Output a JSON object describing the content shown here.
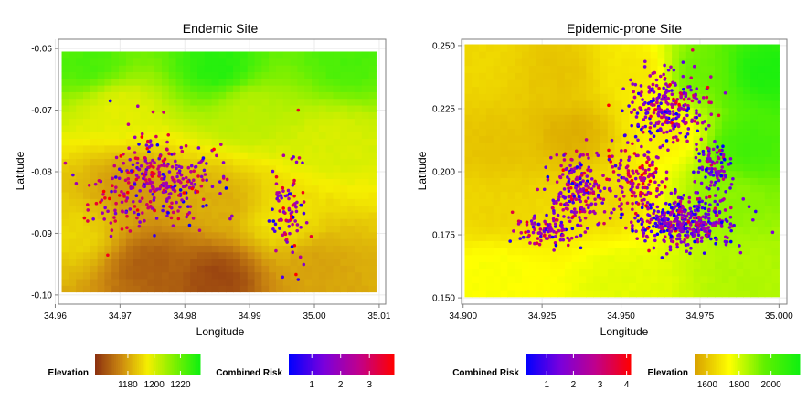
{
  "figure": {
    "panels": [
      "Endemic Site",
      "Epidemic-prone Site"
    ]
  },
  "chart_data": [
    {
      "type": "scatter",
      "title": "Endemic Site",
      "xlabel": "Longitude",
      "ylabel": "Latitude",
      "xlim": [
        34.9605,
        35.011
      ],
      "ylim": [
        -0.1015,
        -0.0585
      ],
      "xticks": [
        34.96,
        34.97,
        34.98,
        34.99,
        35.0,
        35.01
      ],
      "xtick_labels": [
        "34.96",
        "34.97",
        "34.98",
        "34.99",
        "35.00",
        "35.01"
      ],
      "yticks": [
        -0.06,
        -0.07,
        -0.08,
        -0.09,
        -0.1
      ],
      "ytick_labels": [
        "-0.06",
        "-0.07",
        "-0.08",
        "-0.09",
        "-0.10"
      ],
      "grid": true,
      "background": {
        "variable": "Elevation",
        "extent": {
          "x": [
            34.961,
            35.0095
          ],
          "y": [
            -0.0995,
            -0.0605
          ]
        },
        "range": [
          1155,
          1235
        ],
        "description_values": [
          {
            "x": 34.965,
            "y": -0.062,
            "elev": 1225
          },
          {
            "x": 34.985,
            "y": -0.063,
            "elev": 1232
          },
          {
            "x": 35.005,
            "y": -0.062,
            "elev": 1225
          },
          {
            "x": 34.97,
            "y": -0.07,
            "elev": 1198
          },
          {
            "x": 34.99,
            "y": -0.07,
            "elev": 1205
          },
          {
            "x": 35.003,
            "y": -0.075,
            "elev": 1200
          },
          {
            "x": 34.972,
            "y": -0.082,
            "elev": 1178
          },
          {
            "x": 34.985,
            "y": -0.085,
            "elev": 1182
          },
          {
            "x": 34.995,
            "y": -0.088,
            "elev": 1193
          },
          {
            "x": 34.975,
            "y": -0.095,
            "elev": 1165
          },
          {
            "x": 34.985,
            "y": -0.097,
            "elev": 1160
          },
          {
            "x": 35.0,
            "y": -0.095,
            "elev": 1180
          },
          {
            "x": 34.963,
            "y": -0.09,
            "elev": 1190
          }
        ]
      },
      "point_groups": [
        {
          "cx": 34.9765,
          "cy": -0.0812,
          "sx": 0.0043,
          "sy": 0.0037,
          "n": 300,
          "risk_mean": 2.1,
          "risk_sd": 0.9
        },
        {
          "cx": 34.969,
          "cy": -0.085,
          "sx": 0.0022,
          "sy": 0.003,
          "n": 40,
          "risk_mean": 2.5,
          "risk_sd": 0.8
        },
        {
          "cx": 34.996,
          "cy": -0.0855,
          "sx": 0.0014,
          "sy": 0.004,
          "n": 90,
          "risk_mean": 2.0,
          "risk_sd": 0.9
        }
      ],
      "points": [
        {
          "x": 34.9685,
          "y": -0.0685,
          "risk": 0.6
        },
        {
          "x": 34.9975,
          "y": -0.07,
          "risk": 3.5
        },
        {
          "x": 34.9975,
          "y": -0.0975,
          "risk": 0.8
        },
        {
          "x": 34.9645,
          "y": -0.0875,
          "risk": 3.6
        },
        {
          "x": 34.965,
          "y": -0.088,
          "risk": 3.2
        },
        {
          "x": 34.993,
          "y": -0.088,
          "risk": 0.7
        },
        {
          "x": 34.994,
          "y": -0.0885,
          "risk": 0.9
        },
        {
          "x": 34.9995,
          "y": -0.0905,
          "risk": 3.4
        }
      ],
      "legends": [
        {
          "title": "Elevation",
          "min": 1155,
          "max": 1235,
          "ticks": [
            1180,
            1200,
            1220
          ],
          "colors": [
            "#8b3010",
            "#cd8a10",
            "#f5ef00",
            "#80f000",
            "#10f010"
          ]
        },
        {
          "title": "Combined Risk",
          "min": 0.2,
          "max": 3.85,
          "ticks": [
            1,
            2,
            3
          ],
          "colors": [
            "#0000ff",
            "#7a00dc",
            "#c0008c",
            "#ff0000"
          ]
        }
      ]
    },
    {
      "type": "scatter",
      "title": "Epidemic-prone Site",
      "xlabel": "Longitude",
      "ylabel": "Latitude",
      "xlim": [
        34.8995,
        35.0025
      ],
      "ylim": [
        0.1475,
        0.2525
      ],
      "xticks": [
        34.9,
        34.925,
        34.95,
        34.975,
        35.0
      ],
      "xtick_labels": [
        "34.900",
        "34.925",
        "34.950",
        "34.975",
        "35.000"
      ],
      "yticks": [
        0.15,
        0.175,
        0.2,
        0.225,
        0.25
      ],
      "ytick_labels": [
        "0.150",
        "0.175",
        "0.200",
        "0.225",
        "0.250"
      ],
      "grid": true,
      "background": {
        "variable": "Elevation",
        "extent": {
          "x": [
            34.9005,
            35.0
          ],
          "y": [
            0.1505,
            0.2505
          ]
        },
        "range": [
          1520,
          2180
        ],
        "description_values": [
          {
            "x": 34.905,
            "y": 0.245,
            "elev": 1650
          },
          {
            "x": 34.93,
            "y": 0.24,
            "elev": 1600
          },
          {
            "x": 34.955,
            "y": 0.24,
            "elev": 1680
          },
          {
            "x": 34.975,
            "y": 0.24,
            "elev": 1950
          },
          {
            "x": 34.995,
            "y": 0.24,
            "elev": 2150
          },
          {
            "x": 34.91,
            "y": 0.21,
            "elev": 1600
          },
          {
            "x": 34.935,
            "y": 0.215,
            "elev": 1550
          },
          {
            "x": 34.965,
            "y": 0.215,
            "elev": 1700
          },
          {
            "x": 34.99,
            "y": 0.21,
            "elev": 2050
          },
          {
            "x": 34.91,
            "y": 0.185,
            "elev": 1640
          },
          {
            "x": 34.945,
            "y": 0.188,
            "elev": 1650
          },
          {
            "x": 34.985,
            "y": 0.19,
            "elev": 1900
          },
          {
            "x": 34.91,
            "y": 0.16,
            "elev": 1750
          },
          {
            "x": 34.95,
            "y": 0.158,
            "elev": 1780
          },
          {
            "x": 34.99,
            "y": 0.16,
            "elev": 1850
          }
        ]
      },
      "point_groups": [
        {
          "cx": 34.965,
          "cy": 0.225,
          "sx": 0.006,
          "sy": 0.007,
          "n": 280,
          "risk_mean": 2.0,
          "risk_sd": 0.9
        },
        {
          "cx": 34.936,
          "cy": 0.193,
          "sx": 0.005,
          "sy": 0.008,
          "n": 220,
          "risk_mean": 2.2,
          "risk_sd": 0.9
        },
        {
          "cx": 34.97,
          "cy": 0.18,
          "sx": 0.008,
          "sy": 0.005,
          "n": 400,
          "risk_mean": 1.8,
          "risk_sd": 1.0
        },
        {
          "cx": 34.955,
          "cy": 0.198,
          "sx": 0.004,
          "sy": 0.006,
          "n": 140,
          "risk_mean": 2.5,
          "risk_sd": 0.9
        },
        {
          "cx": 34.926,
          "cy": 0.176,
          "sx": 0.005,
          "sy": 0.003,
          "n": 90,
          "risk_mean": 2.3,
          "risk_sd": 0.9
        },
        {
          "cx": 34.979,
          "cy": 0.202,
          "sx": 0.003,
          "sy": 0.005,
          "n": 90,
          "risk_mean": 1.8,
          "risk_sd": 0.9
        }
      ],
      "points": [
        {
          "x": 34.998,
          "y": 0.176,
          "risk": 1.6
        },
        {
          "x": 34.985,
          "y": 0.195,
          "risk": 1.7
        }
      ],
      "legends": [
        {
          "title": "Combined Risk",
          "min": 0.2,
          "max": 4.15,
          "ticks": [
            1,
            2,
            3,
            4
          ],
          "colors": [
            "#0000ff",
            "#7a00dc",
            "#c0008c",
            "#ff0000"
          ]
        },
        {
          "title": "Elevation",
          "min": 1520,
          "max": 2180,
          "ticks": [
            1600,
            1800,
            2000
          ],
          "colors": [
            "#d8a000",
            "#ffff00",
            "#60f000",
            "#10f010"
          ]
        }
      ]
    }
  ]
}
